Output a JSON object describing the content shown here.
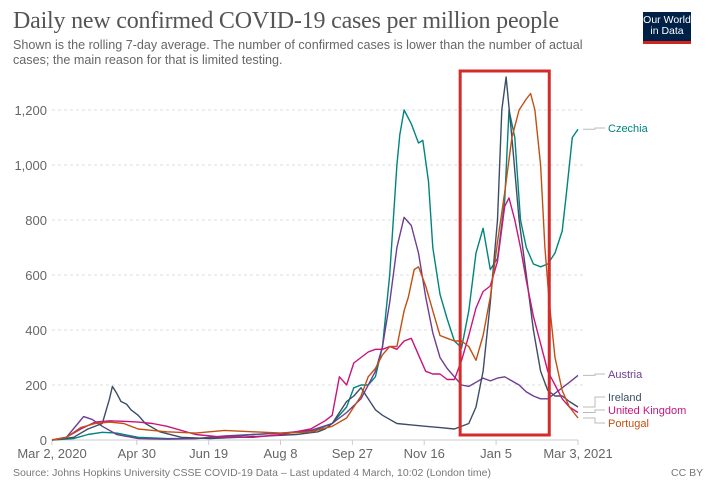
{
  "header": {
    "title": "Daily new confirmed COVID-19 cases per million people",
    "subtitle": "Shown is the rolling 7-day average. The number of confirmed cases is lower than the number of actual cases; the main reason for that is limited testing.",
    "logo_line1": "Our World",
    "logo_line2": "in Data"
  },
  "footer": {
    "source": "Source: Johns Hopkins University CSSE COVID-19 Data – Last updated 4 March, 10:02 (London time)",
    "license": "CC BY"
  },
  "highlight": {
    "from_day": 284,
    "to_day": 346,
    "color": "#d42b2b"
  },
  "chart_data": {
    "type": "line",
    "title": "Daily new confirmed COVID-19 cases per million people",
    "xlabel": "",
    "ylabel": "",
    "x_unit": "days since Mar 2, 2020",
    "xlim": [
      0,
      366
    ],
    "ylim": [
      0,
      1300
    ],
    "grid": true,
    "y_ticks": [
      0,
      200,
      400,
      600,
      800,
      1000,
      1200
    ],
    "y_tick_labels": [
      "0",
      "200",
      "400",
      "600",
      "800",
      "1,000",
      "1,200"
    ],
    "x_ticks": [
      0,
      59,
      109,
      159,
      209,
      259,
      309,
      366
    ],
    "x_tick_labels": [
      "Mar 2, 2020",
      "Apr 30",
      "Jun 19",
      "Aug 8",
      "Sep 27",
      "Nov 16",
      "Jan 5",
      "Mar 3, 2021"
    ],
    "legend": "right, inline labels",
    "series": [
      {
        "name": "Czechia",
        "color": "#00847e",
        "x": [
          0,
          15,
          25,
          35,
          45,
          60,
          80,
          100,
          120,
          140,
          160,
          180,
          195,
          205,
          210,
          215,
          220,
          225,
          230,
          235,
          240,
          242,
          245,
          250,
          255,
          258,
          262,
          265,
          270,
          275,
          280,
          285,
          290,
          295,
          300,
          305,
          310,
          315,
          318,
          322,
          326,
          330,
          335,
          340,
          345,
          350,
          355,
          358,
          362,
          366
        ],
        "y": [
          0,
          5,
          20,
          28,
          25,
          10,
          5,
          5,
          10,
          20,
          25,
          30,
          60,
          120,
          190,
          200,
          200,
          230,
          340,
          600,
          1000,
          1110,
          1200,
          1150,
          1080,
          1090,
          940,
          700,
          530,
          440,
          360,
          335,
          470,
          680,
          770,
          620,
          660,
          870,
          1200,
          1100,
          800,
          700,
          640,
          630,
          640,
          680,
          760,
          900,
          1100,
          1130
        ]
      },
      {
        "name": "Austria",
        "color": "#6d3e91",
        "x": [
          0,
          10,
          18,
          22,
          28,
          35,
          45,
          60,
          80,
          100,
          120,
          140,
          160,
          180,
          195,
          205,
          215,
          225,
          230,
          235,
          240,
          245,
          250,
          255,
          260,
          265,
          270,
          275,
          280,
          285,
          290,
          295,
          300,
          305,
          310,
          315,
          320,
          325,
          330,
          335,
          340,
          345,
          350,
          355,
          360,
          366
        ],
        "y": [
          0,
          10,
          60,
          85,
          75,
          50,
          20,
          5,
          3,
          5,
          15,
          20,
          25,
          35,
          60,
          100,
          150,
          250,
          340,
          500,
          700,
          810,
          780,
          680,
          520,
          390,
          300,
          260,
          230,
          200,
          195,
          210,
          225,
          215,
          225,
          230,
          215,
          200,
          175,
          160,
          150,
          150,
          170,
          190,
          210,
          235
        ]
      },
      {
        "name": "Ireland",
        "color": "#3c4e66",
        "x": [
          0,
          15,
          25,
          35,
          40,
          42,
          45,
          48,
          52,
          55,
          60,
          65,
          75,
          90,
          110,
          130,
          150,
          170,
          185,
          190,
          195,
          200,
          205,
          210,
          215,
          220,
          225,
          230,
          240,
          250,
          260,
          270,
          280,
          290,
          295,
          300,
          305,
          310,
          313,
          316,
          320,
          325,
          330,
          335,
          340,
          345,
          350,
          355,
          360,
          366
        ],
        "y": [
          0,
          10,
          40,
          60,
          150,
          195,
          170,
          140,
          130,
          110,
          90,
          60,
          30,
          10,
          5,
          10,
          15,
          20,
          30,
          40,
          60,
          100,
          140,
          160,
          190,
          150,
          110,
          90,
          60,
          55,
          50,
          45,
          40,
          60,
          120,
          250,
          500,
          800,
          1200,
          1320,
          1100,
          800,
          600,
          400,
          250,
          180,
          160,
          160,
          140,
          120
        ]
      },
      {
        "name": "United Kingdom",
        "color": "#c7147e",
        "x": [
          0,
          10,
          20,
          30,
          40,
          50,
          60,
          70,
          80,
          100,
          120,
          140,
          160,
          180,
          190,
          195,
          200,
          205,
          210,
          215,
          220,
          225,
          230,
          235,
          240,
          245,
          250,
          255,
          260,
          265,
          270,
          275,
          280,
          285,
          290,
          295,
          300,
          305,
          310,
          315,
          318,
          322,
          326,
          330,
          335,
          340,
          345,
          350,
          355,
          360,
          366
        ],
        "y": [
          0,
          10,
          40,
          65,
          70,
          68,
          65,
          60,
          50,
          20,
          10,
          10,
          20,
          40,
          70,
          90,
          230,
          200,
          280,
          300,
          320,
          330,
          330,
          340,
          330,
          360,
          370,
          310,
          250,
          240,
          240,
          220,
          220,
          290,
          380,
          480,
          540,
          560,
          650,
          850,
          880,
          800,
          700,
          580,
          450,
          350,
          250,
          200,
          150,
          120,
          100
        ]
      },
      {
        "name": "Portugal",
        "color": "#c15015",
        "x": [
          0,
          10,
          20,
          30,
          40,
          50,
          60,
          70,
          80,
          100,
          120,
          140,
          160,
          180,
          195,
          205,
          210,
          215,
          220,
          225,
          230,
          235,
          240,
          245,
          248,
          252,
          255,
          260,
          265,
          270,
          275,
          280,
          285,
          290,
          295,
          300,
          305,
          310,
          315,
          320,
          325,
          330,
          333,
          336,
          340,
          343,
          346,
          350,
          355,
          360,
          366
        ],
        "y": [
          0,
          10,
          45,
          60,
          65,
          60,
          40,
          35,
          30,
          25,
          35,
          30,
          25,
          30,
          50,
          80,
          120,
          160,
          230,
          260,
          310,
          340,
          340,
          470,
          520,
          620,
          630,
          560,
          470,
          380,
          370,
          360,
          360,
          340,
          290,
          380,
          520,
          720,
          900,
          1100,
          1200,
          1240,
          1260,
          1200,
          1000,
          700,
          500,
          300,
          180,
          120,
          80
        ]
      }
    ]
  }
}
